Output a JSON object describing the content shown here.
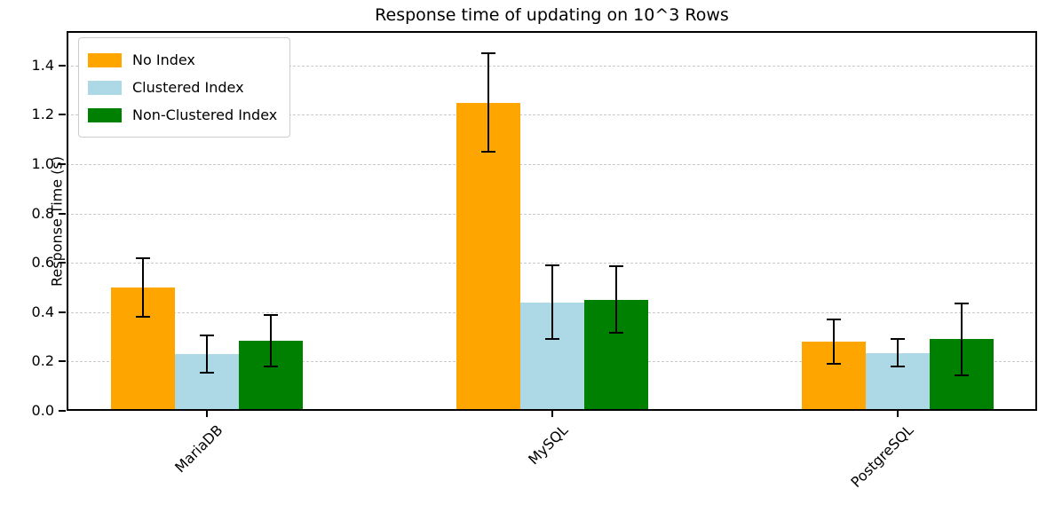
{
  "chart_data": {
    "type": "bar",
    "title": "Response time of updating on 10^3 Rows",
    "xlabel": "",
    "ylabel": "Response Time (s)",
    "categories": [
      "MariaDB",
      "MySQL",
      "PostgreSQL"
    ],
    "series": [
      {
        "name": "No Index",
        "color": "#FFA500",
        "values": [
          0.5,
          1.25,
          0.28
        ],
        "errors": [
          0.12,
          0.2,
          0.09
        ]
      },
      {
        "name": "Clustered Index",
        "color": "#ADD8E6",
        "values": [
          0.23,
          0.44,
          0.235
        ],
        "errors": [
          0.075,
          0.15,
          0.055
        ]
      },
      {
        "name": "Non-Clustered Index",
        "color": "#008000",
        "values": [
          0.285,
          0.45,
          0.29
        ],
        "errors": [
          0.105,
          0.135,
          0.145
        ]
      }
    ],
    "yticks": [
      0.0,
      0.2,
      0.4,
      0.6,
      0.8,
      1.0,
      1.2,
      1.4
    ],
    "ylim": [
      0,
      1.54
    ],
    "grid": "horizontal-dashed",
    "grid_color": "#c9c9c9",
    "error_bars": true,
    "error_bar_color": "#000000",
    "legend_position": "upper-left",
    "legend_border_color": "#cccccc",
    "background_color": "#ffffff",
    "x_tick_label_rotation_deg": 45
  }
}
